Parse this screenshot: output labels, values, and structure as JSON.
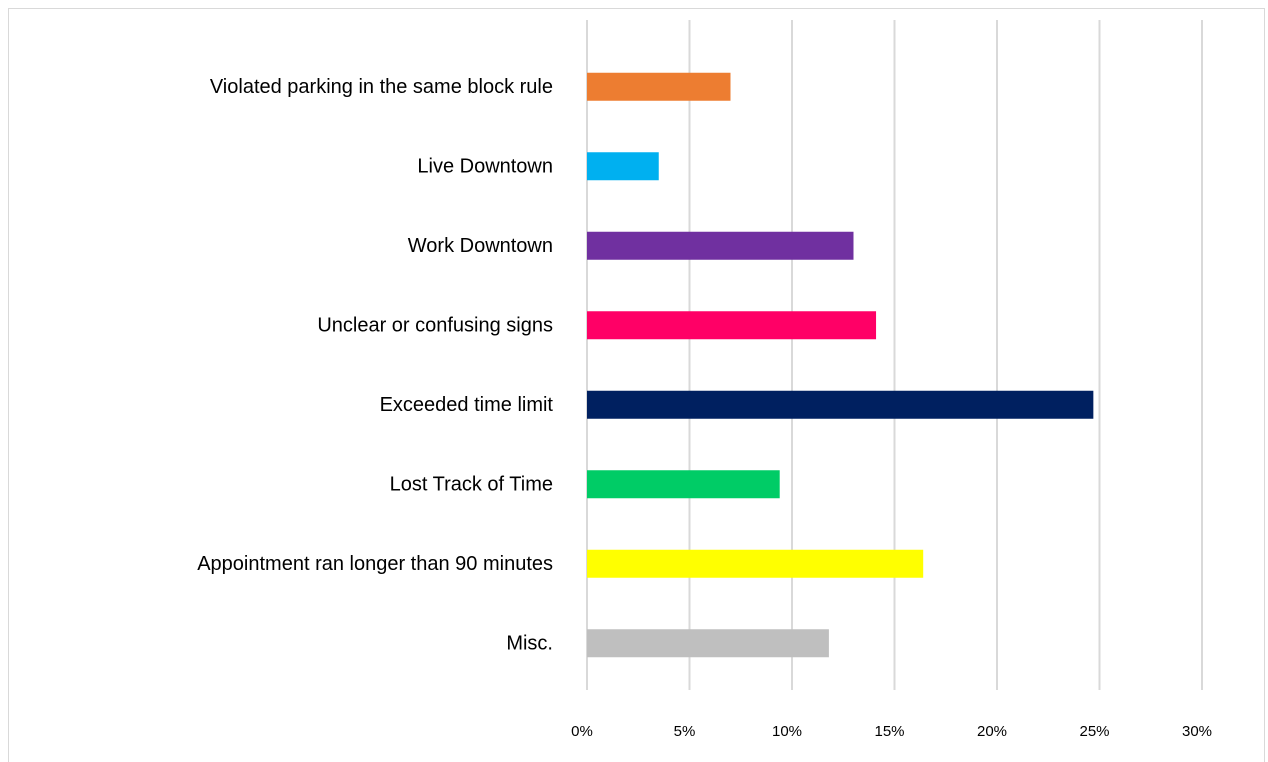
{
  "chart_data": {
    "type": "hbar",
    "categories": [
      "Violated parking in the same block rule",
      "Live Downtown",
      "Work Downtown",
      "Unclear or confusing signs",
      "Exceeded time limit",
      "Lost Track of Time",
      "Appointment ran longer than 90 minutes",
      "Misc."
    ],
    "values": [
      7.0,
      3.5,
      13.0,
      14.1,
      24.7,
      9.4,
      16.4,
      11.8
    ],
    "colors": [
      "#ed7d31",
      "#00b0f0",
      "#7030a0",
      "#ff0066",
      "#002060",
      "#00cc66",
      "#ffff00",
      "#bfbfbf"
    ],
    "xlim": [
      0,
      30
    ],
    "xticks": [
      {
        "value": 0,
        "label": "0%"
      },
      {
        "value": 5,
        "label": "5%"
      },
      {
        "value": 10,
        "label": "10%"
      },
      {
        "value": 15,
        "label": "15%"
      },
      {
        "value": 20,
        "label": "20%"
      },
      {
        "value": 25,
        "label": "25%"
      },
      {
        "value": 30,
        "label": "30%"
      }
    ],
    "grid": true
  }
}
